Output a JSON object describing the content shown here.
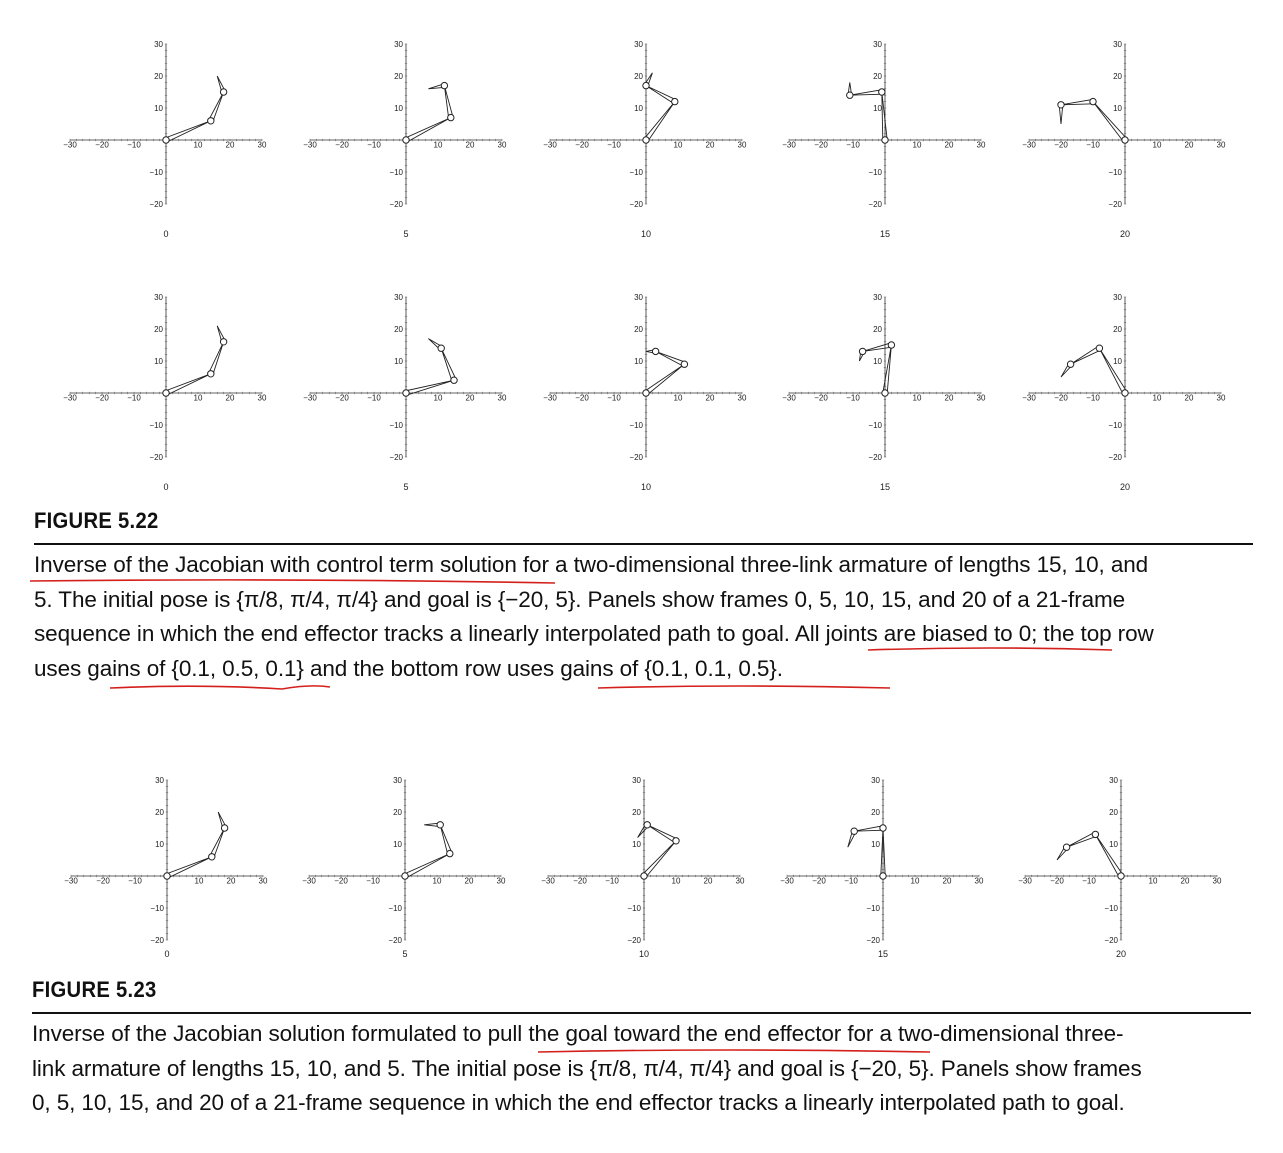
{
  "axis": {
    "ticks": [
      -30,
      -20,
      -10,
      10,
      20,
      30
    ],
    "xlim": [
      -30,
      30
    ],
    "ylim": [
      -20,
      30
    ],
    "y_ticks": [
      30,
      20,
      10,
      -10,
      -20
    ]
  },
  "figure_5_22": {
    "label": "FIGURE 5.22",
    "caption_lines": [
      "Inverse of the Jacobian with control term solution for a two-dimensional three-link armature of lengths 15, 10, and",
      "5. The initial pose is {π/8, π/4, π/4} and goal is {−20, 5}. Panels show frames 0, 5, 10, 15, and 20 of a 21-frame",
      "sequence in which the end effector tracks a linearly interpolated path to goal. All joints are biased to 0; the top row",
      "uses gains of {0.1, 0.5, 0.1} and the bottom row uses gains of {0.1, 0.1, 0.5}."
    ]
  },
  "figure_5_23": {
    "label": "FIGURE 5.23",
    "caption_lines": [
      "Inverse of the Jacobian solution formulated to pull the goal toward the end effector for a two-dimensional three-",
      "link armature of lengths 15, 10, and 5. The initial pose is {π/8, π/4, π/4} and goal is {−20, 5}. Panels show frames",
      "0, 5, 10, 15, and 20 of a 21-frame sequence in which the end effector tracks a linearly interpolated path to goal."
    ]
  },
  "chart_data": [
    {
      "type": "line",
      "figure": "FIGURE 5.22",
      "row": "top",
      "frames": [
        "0",
        "5",
        "10",
        "15",
        "20"
      ],
      "xlim": [
        -30,
        30
      ],
      "ylim": [
        -20,
        30
      ],
      "armatures": [
        [
          [
            0,
            0
          ],
          [
            14,
            6
          ],
          [
            18,
            15
          ],
          [
            16,
            20
          ]
        ],
        [
          [
            0,
            0
          ],
          [
            14,
            7
          ],
          [
            12,
            17
          ],
          [
            7,
            16
          ]
        ],
        [
          [
            0,
            0
          ],
          [
            9,
            12
          ],
          [
            0,
            17
          ],
          [
            2,
            21
          ]
        ],
        [
          [
            0,
            0
          ],
          [
            -1,
            15
          ],
          [
            -11,
            14
          ],
          [
            -11,
            18
          ]
        ],
        [
          [
            0,
            0
          ],
          [
            -10,
            12
          ],
          [
            -20,
            11
          ],
          [
            -20,
            5
          ]
        ]
      ]
    },
    {
      "type": "line",
      "figure": "FIGURE 5.22",
      "row": "bottom",
      "frames": [
        "0",
        "5",
        "10",
        "15",
        "20"
      ],
      "xlim": [
        -30,
        30
      ],
      "ylim": [
        -20,
        30
      ],
      "armatures": [
        [
          [
            0,
            0
          ],
          [
            14,
            6
          ],
          [
            18,
            16
          ],
          [
            16,
            21
          ]
        ],
        [
          [
            0,
            0
          ],
          [
            15,
            4
          ],
          [
            11,
            14
          ],
          [
            7,
            17
          ]
        ],
        [
          [
            0,
            0
          ],
          [
            12,
            9
          ],
          [
            3,
            13
          ],
          [
            0,
            13
          ]
        ],
        [
          [
            0,
            0
          ],
          [
            2,
            15
          ],
          [
            -7,
            13
          ],
          [
            -8,
            10
          ]
        ],
        [
          [
            0,
            0
          ],
          [
            -8,
            14
          ],
          [
            -17,
            9
          ],
          [
            -20,
            5
          ]
        ]
      ]
    },
    {
      "type": "line",
      "figure": "FIGURE 5.23",
      "row": "single",
      "frames": [
        "0",
        "5",
        "10",
        "15",
        "20"
      ],
      "xlim": [
        -30,
        30
      ],
      "ylim": [
        -20,
        30
      ],
      "armatures": [
        [
          [
            0,
            0
          ],
          [
            14,
            6
          ],
          [
            18,
            15
          ],
          [
            16,
            20
          ]
        ],
        [
          [
            0,
            0
          ],
          [
            14,
            7
          ],
          [
            11,
            16
          ],
          [
            6,
            16
          ]
        ],
        [
          [
            0,
            0
          ],
          [
            10,
            11
          ],
          [
            1,
            16
          ],
          [
            -2,
            12
          ]
        ],
        [
          [
            0,
            0
          ],
          [
            0,
            15
          ],
          [
            -9,
            14
          ],
          [
            -11,
            9
          ]
        ],
        [
          [
            0,
            0
          ],
          [
            -8,
            13
          ],
          [
            -17,
            9
          ],
          [
            -20,
            5
          ]
        ]
      ]
    }
  ]
}
